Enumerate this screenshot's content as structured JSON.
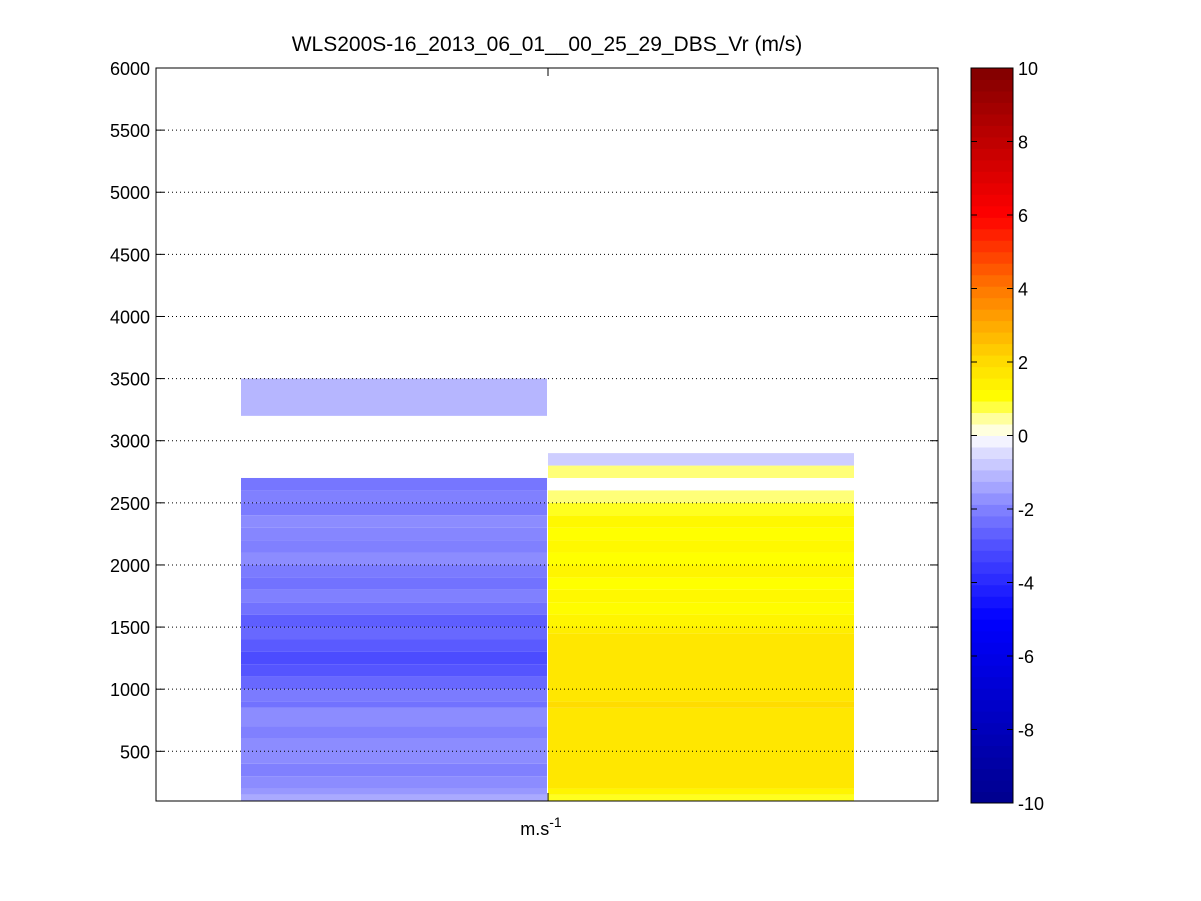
{
  "chart_data": {
    "type": "heatmap",
    "title": "WLS200S-16_2013_06_01__00_25_29_DBS_Vr (m/s)",
    "xlabel": "m.s",
    "xlabel_superscript": "-1",
    "ylabel": "",
    "ylim": [
      100,
      6000
    ],
    "yticks": [
      500,
      1000,
      1500,
      2000,
      2500,
      3000,
      3500,
      4000,
      4500,
      5000,
      5500,
      6000
    ],
    "grid": "horizontal dotted",
    "colorbar": {
      "colormap": "jet-style blue-white-red",
      "clim": [
        -10,
        10
      ],
      "ticks": [
        -10,
        -8,
        -6,
        -4,
        -2,
        0,
        2,
        4,
        6,
        8,
        10
      ],
      "placement": "right"
    },
    "columns": [
      {
        "position": 1,
        "cells": [
          [
            100,
            150,
            -1.3
          ],
          [
            150,
            200,
            -1.6
          ],
          [
            200,
            300,
            -1.8
          ],
          [
            300,
            400,
            -2.0
          ],
          [
            400,
            600,
            -1.8
          ],
          [
            600,
            700,
            -2.0
          ],
          [
            700,
            850,
            -1.8
          ],
          [
            850,
            900,
            -2.3
          ],
          [
            900,
            1000,
            -2.1
          ],
          [
            1000,
            1100,
            -2.5
          ],
          [
            1100,
            1200,
            -2.9
          ],
          [
            1200,
            1300,
            -3.1
          ],
          [
            1300,
            1400,
            -2.8
          ],
          [
            1400,
            1500,
            -2.5
          ],
          [
            1500,
            1600,
            -2.7
          ],
          [
            1600,
            1700,
            -2.3
          ],
          [
            1700,
            1800,
            -2.0
          ],
          [
            1800,
            1900,
            -2.3
          ],
          [
            1900,
            2000,
            -2.1
          ],
          [
            2000,
            2100,
            -1.8
          ],
          [
            2100,
            2200,
            -2.0
          ],
          [
            2200,
            2300,
            -1.9
          ],
          [
            2300,
            2400,
            -1.8
          ],
          [
            2400,
            2500,
            -2.1
          ],
          [
            2500,
            2600,
            -2.0
          ],
          [
            2600,
            2700,
            -2.2
          ],
          [
            3200,
            3500,
            -1.1
          ]
        ]
      },
      {
        "position": 2,
        "cells": [
          [
            100,
            150,
            0.9
          ],
          [
            150,
            200,
            1.3
          ],
          [
            200,
            850,
            1.7
          ],
          [
            850,
            900,
            2.0
          ],
          [
            900,
            1450,
            1.7
          ],
          [
            1450,
            1500,
            1.5
          ],
          [
            1500,
            1600,
            1.3
          ],
          [
            1600,
            1700,
            1.1
          ],
          [
            1700,
            1800,
            1.2
          ],
          [
            1800,
            1900,
            1.0
          ],
          [
            1900,
            2000,
            1.3
          ],
          [
            2000,
            2100,
            1.0
          ],
          [
            2100,
            2200,
            1.2
          ],
          [
            2200,
            2300,
            1.0
          ],
          [
            2300,
            2400,
            1.2
          ],
          [
            2400,
            2500,
            0.9
          ],
          [
            2500,
            2600,
            0.6
          ],
          [
            2700,
            2800,
            0.6
          ],
          [
            2800,
            2900,
            -0.7
          ]
        ]
      }
    ]
  }
}
